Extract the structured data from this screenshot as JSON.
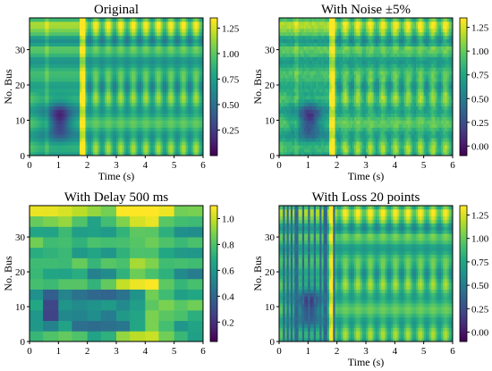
{
  "figure": {
    "panels": [
      {
        "title": "Original",
        "xlabel": "Time (s)",
        "ylabel": "No. Bus"
      },
      {
        "title": "With Noise ±5%",
        "xlabel": "Time (s)",
        "ylabel": "No. Bus"
      },
      {
        "title": "With Delay 500 ms",
        "xlabel": "",
        "ylabel": "No. Bus"
      },
      {
        "title": "With Loss 20 points",
        "xlabel": "Time (s)",
        "ylabel": "No. Bus"
      }
    ]
  },
  "chart_data": [
    {
      "type": "heatmap",
      "title": "Original",
      "xlabel": "Time (s)",
      "ylabel": "No. Bus",
      "x_ticks": [
        0,
        1,
        2,
        3,
        4,
        5,
        6
      ],
      "y_ticks": [
        0,
        10,
        20,
        30
      ],
      "xlim": [
        0,
        6
      ],
      "ylim": [
        0,
        39
      ],
      "colorbar": {
        "ticks": [
          0.25,
          0.5,
          0.75,
          1.0,
          1.25
        ],
        "tick_labels": [
          "0.25",
          "0.50",
          "0.75",
          "1.00",
          "1.25"
        ],
        "range": [
          0.0,
          1.35
        ]
      },
      "colormap": "viridis",
      "pattern": "low values around 0.5-1.5 s for buses 5-15, oscillating bands after ~1.8 s, high ridge near bus 35",
      "variant": "original"
    },
    {
      "type": "heatmap",
      "title": "With Noise ±5%",
      "xlabel": "Time (s)",
      "ylabel": "No. Bus",
      "x_ticks": [
        0,
        1,
        2,
        3,
        4,
        5,
        6
      ],
      "y_ticks": [
        0,
        10,
        20,
        30
      ],
      "xlim": [
        0,
        6
      ],
      "ylim": [
        0,
        39
      ],
      "colorbar": {
        "ticks": [
          0.0,
          0.25,
          0.5,
          0.75,
          1.0,
          1.25
        ],
        "tick_labels": [
          "0.00",
          "0.25",
          "0.50",
          "0.75",
          "1.00",
          "1.25"
        ],
        "range": [
          -0.1,
          1.35
        ]
      },
      "colormap": "viridis",
      "pattern": "same as original with added noise",
      "variant": "noise"
    },
    {
      "type": "heatmap",
      "title": "With Delay 500 ms",
      "xlabel": "",
      "ylabel": "No. Bus",
      "x_ticks": [
        0,
        1,
        2,
        3,
        4,
        5,
        6
      ],
      "y_ticks": [
        0,
        10,
        20,
        30
      ],
      "xlim": [
        0,
        6
      ],
      "ylim": [
        0,
        39
      ],
      "colorbar": {
        "ticks": [
          0.2,
          0.4,
          0.6,
          0.8,
          1.0
        ],
        "tick_labels": [
          "0.2",
          "0.4",
          "0.6",
          "0.8",
          "1.0"
        ],
        "range": [
          0.05,
          1.1
        ]
      },
      "colormap": "viridis",
      "pattern": "blocky piecewise-constant values every ~0.5 s, dark blocks near buses 5-13",
      "variant": "delay"
    },
    {
      "type": "heatmap",
      "title": "With Loss 20 points",
      "xlabel": "Time (s)",
      "ylabel": "No. Bus",
      "x_ticks": [
        0,
        1,
        2,
        3,
        4,
        5,
        6
      ],
      "y_ticks": [
        0,
        10,
        20,
        30
      ],
      "xlim": [
        0,
        6
      ],
      "ylim": [
        0,
        39
      ],
      "colorbar": {
        "ticks": [
          0.0,
          0.25,
          0.5,
          0.75,
          1.0,
          1.25
        ],
        "tick_labels": [
          "0.00",
          "0.25",
          "0.50",
          "0.75",
          "1.00",
          "1.25"
        ],
        "range": [
          -0.1,
          1.35
        ]
      },
      "colormap": "viridis",
      "pattern": "original with several dropped time columns in the first 2 s",
      "variant": "loss"
    }
  ]
}
